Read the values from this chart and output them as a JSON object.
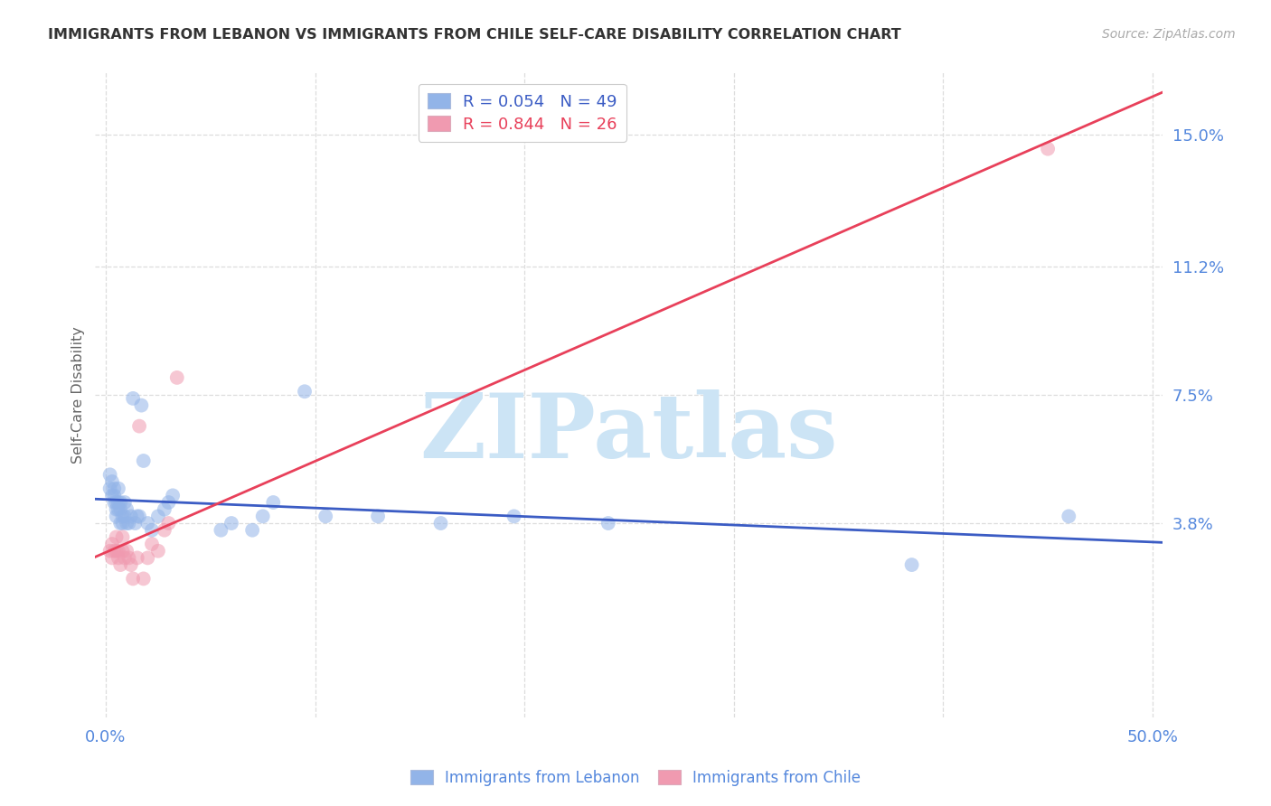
{
  "title": "IMMIGRANTS FROM LEBANON VS IMMIGRANTS FROM CHILE SELF-CARE DISABILITY CORRELATION CHART",
  "source": "Source: ZipAtlas.com",
  "ylabel": "Self-Care Disability",
  "y_tick_vals": [
    0.15,
    0.112,
    0.075,
    0.038
  ],
  "y_tick_labels": [
    "15.0%",
    "11.2%",
    "7.5%",
    "3.8%"
  ],
  "xlim": [
    -0.005,
    0.505
  ],
  "ylim": [
    -0.018,
    0.168
  ],
  "blue_line_color": "#3b5cc4",
  "pink_line_color": "#e8405a",
  "blue_scatter_color": "#92b4e8",
  "pink_scatter_color": "#f09ab0",
  "watermark": "ZIPatlas",
  "watermark_color": "#cce4f5",
  "background_color": "#ffffff",
  "grid_color": "#dddddd",
  "right_label_color": "#5588dd",
  "bottom_label_color": "#5588dd",
  "lebanon_x": [
    0.002,
    0.002,
    0.003,
    0.003,
    0.004,
    0.004,
    0.004,
    0.005,
    0.005,
    0.005,
    0.006,
    0.006,
    0.006,
    0.007,
    0.007,
    0.007,
    0.008,
    0.008,
    0.009,
    0.009,
    0.01,
    0.01,
    0.011,
    0.012,
    0.013,
    0.014,
    0.015,
    0.016,
    0.017,
    0.018,
    0.02,
    0.022,
    0.025,
    0.028,
    0.03,
    0.032,
    0.055,
    0.06,
    0.07,
    0.075,
    0.08,
    0.095,
    0.105,
    0.13,
    0.16,
    0.195,
    0.24,
    0.385,
    0.46
  ],
  "lebanon_y": [
    0.052,
    0.048,
    0.046,
    0.05,
    0.044,
    0.046,
    0.048,
    0.04,
    0.042,
    0.044,
    0.042,
    0.044,
    0.048,
    0.038,
    0.042,
    0.044,
    0.038,
    0.04,
    0.04,
    0.044,
    0.038,
    0.042,
    0.038,
    0.04,
    0.074,
    0.038,
    0.04,
    0.04,
    0.072,
    0.056,
    0.038,
    0.036,
    0.04,
    0.042,
    0.044,
    0.046,
    0.036,
    0.038,
    0.036,
    0.04,
    0.044,
    0.076,
    0.04,
    0.04,
    0.038,
    0.04,
    0.038,
    0.026,
    0.04
  ],
  "chile_x": [
    0.002,
    0.003,
    0.003,
    0.004,
    0.005,
    0.005,
    0.006,
    0.006,
    0.007,
    0.008,
    0.008,
    0.009,
    0.01,
    0.011,
    0.012,
    0.013,
    0.015,
    0.016,
    0.018,
    0.02,
    0.022,
    0.025,
    0.028,
    0.03,
    0.034,
    0.45
  ],
  "chile_y": [
    0.03,
    0.028,
    0.032,
    0.03,
    0.03,
    0.034,
    0.028,
    0.03,
    0.026,
    0.03,
    0.034,
    0.028,
    0.03,
    0.028,
    0.026,
    0.022,
    0.028,
    0.066,
    0.022,
    0.028,
    0.032,
    0.03,
    0.036,
    0.038,
    0.08,
    0.146
  ],
  "legend_blue_label": "R = 0.054   N = 49",
  "legend_pink_label": "R = 0.844   N = 26",
  "bottom_legend_blue": "Immigrants from Lebanon",
  "bottom_legend_pink": "Immigrants from Chile"
}
